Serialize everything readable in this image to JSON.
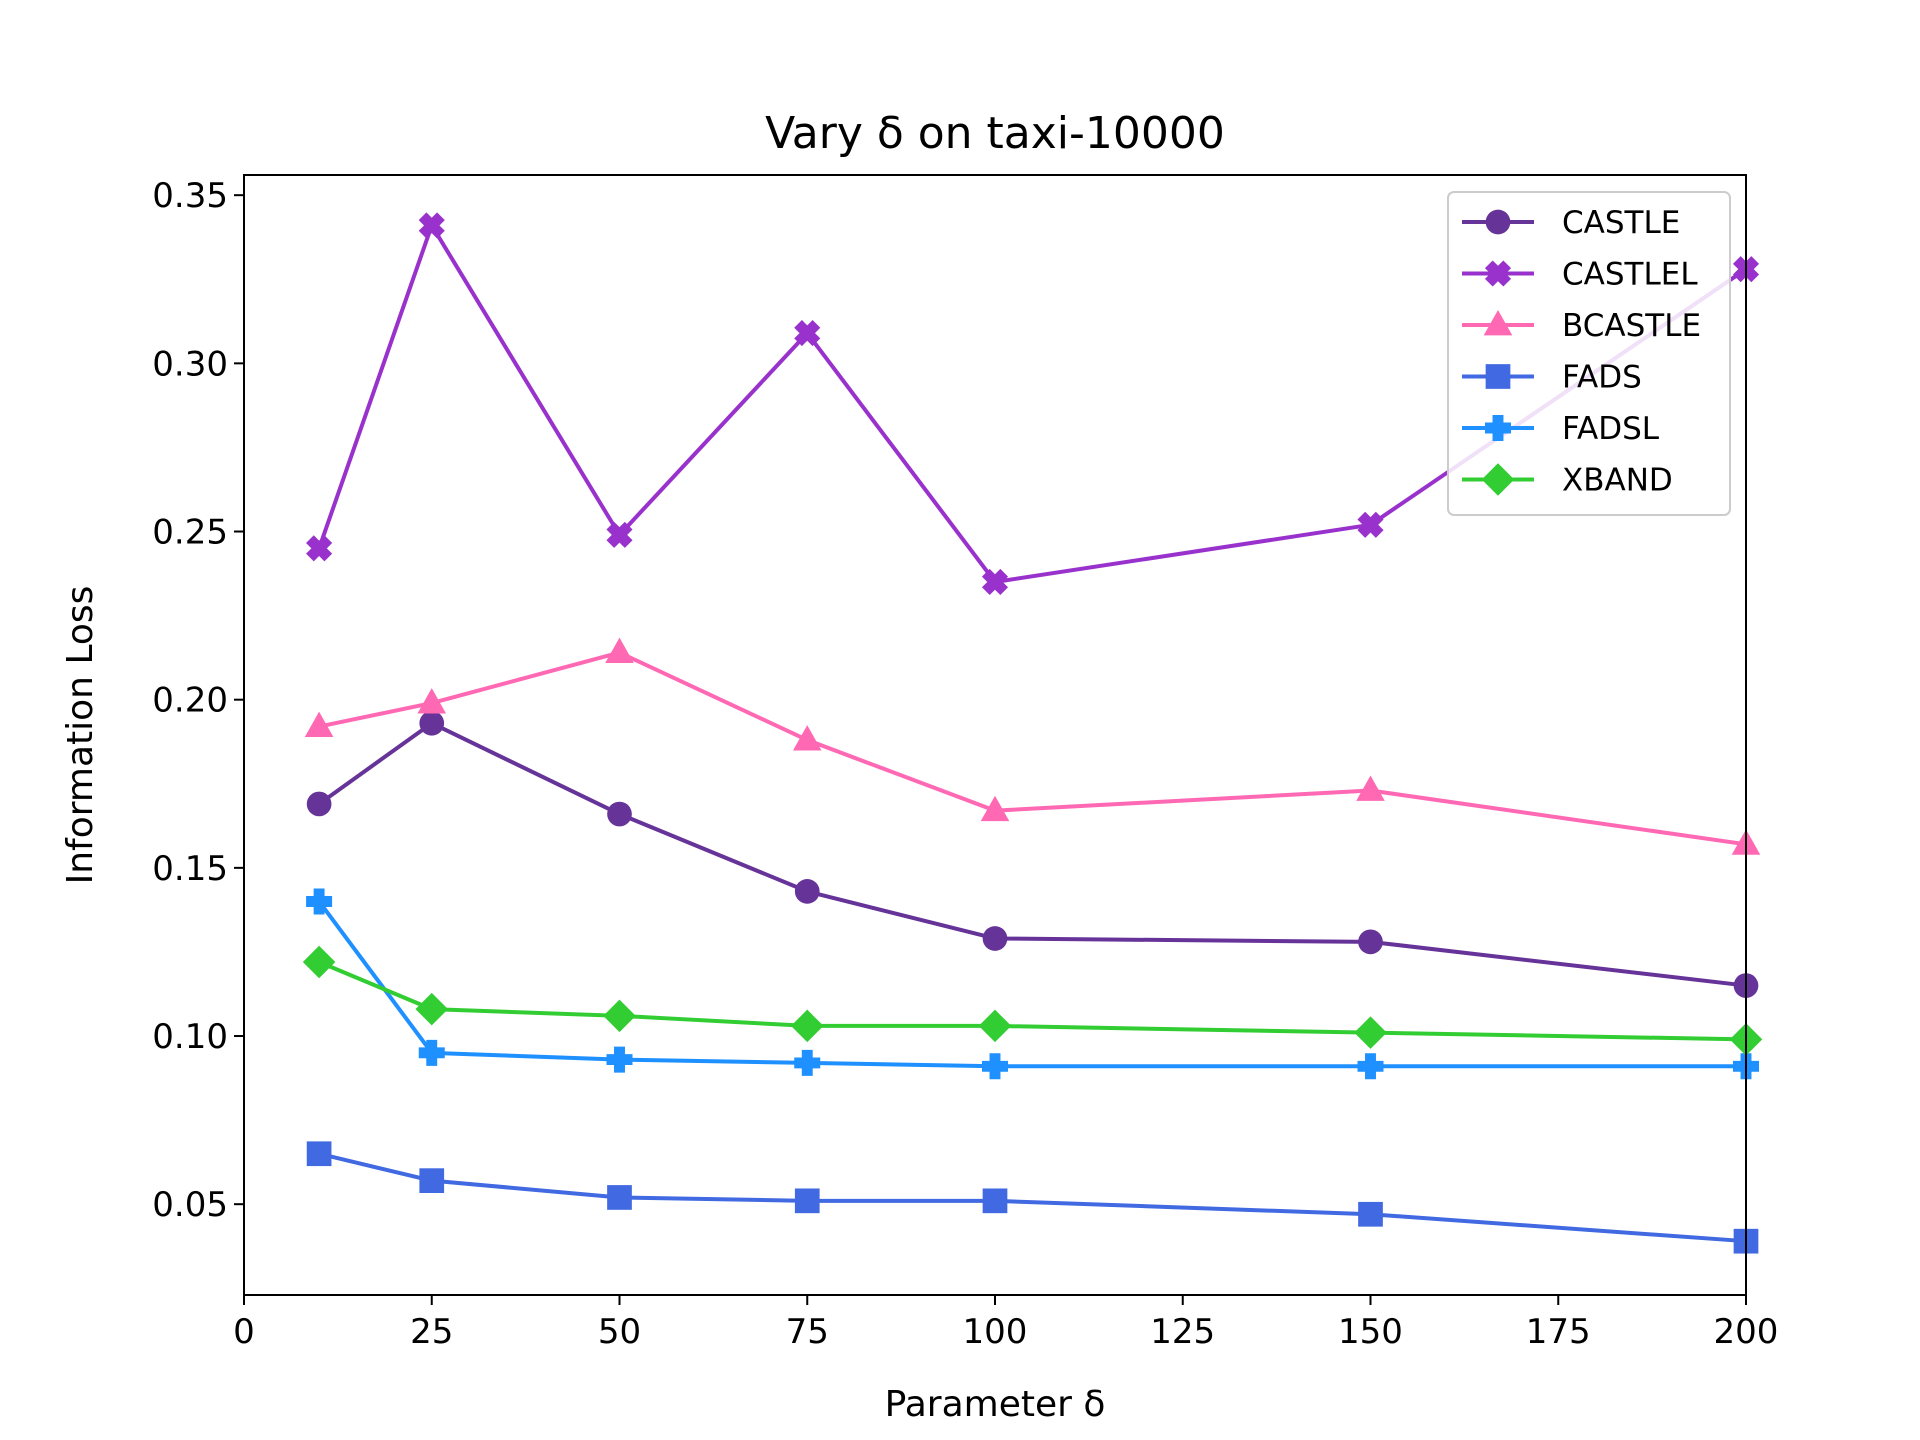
{
  "chart_data": {
    "type": "line",
    "title": "Vary δ on taxi-10000",
    "xlabel": "Parameter δ",
    "ylabel": "Information Loss",
    "xlim": [
      0,
      200
    ],
    "ylim": [
      0.023,
      0.356
    ],
    "xticks": [
      0,
      25,
      50,
      75,
      100,
      125,
      150,
      175,
      200
    ],
    "yticks": [
      0.05,
      0.1,
      0.15,
      0.2,
      0.25,
      0.3,
      0.35
    ],
    "xtick_labels": [
      "0",
      "25",
      "50",
      "75",
      "100",
      "125",
      "150",
      "175",
      "200"
    ],
    "ytick_labels": [
      "0.05",
      "0.10",
      "0.15",
      "0.20",
      "0.25",
      "0.30",
      "0.35"
    ],
    "grid": false,
    "legend_position": "top-right",
    "x": [
      10,
      25,
      50,
      75,
      100,
      150,
      200
    ],
    "series": [
      {
        "name": "CASTLE",
        "color": "#663399",
        "marker": "circle",
        "values": [
          0.169,
          0.193,
          0.166,
          0.143,
          0.129,
          0.128,
          0.115
        ]
      },
      {
        "name": "CASTLEL",
        "color": "#9932cc",
        "marker": "x-filled",
        "values": [
          0.245,
          0.341,
          0.249,
          0.309,
          0.235,
          0.252,
          0.328
        ]
      },
      {
        "name": "BCASTLE",
        "color": "#ff69b4",
        "marker": "triangle",
        "values": [
          0.192,
          0.199,
          0.214,
          0.188,
          0.167,
          0.173,
          0.157
        ]
      },
      {
        "name": "FADS",
        "color": "#4169e1",
        "marker": "square",
        "values": [
          0.065,
          0.057,
          0.052,
          0.051,
          0.051,
          0.047,
          0.039
        ]
      },
      {
        "name": "FADSL",
        "color": "#1e90ff",
        "marker": "plus-filled",
        "values": [
          0.14,
          0.095,
          0.093,
          0.092,
          0.091,
          0.091,
          0.091
        ]
      },
      {
        "name": "XBAND",
        "color": "#32cd32",
        "marker": "diamond",
        "values": [
          0.122,
          0.108,
          0.106,
          0.103,
          0.103,
          0.101,
          0.099
        ]
      }
    ]
  }
}
